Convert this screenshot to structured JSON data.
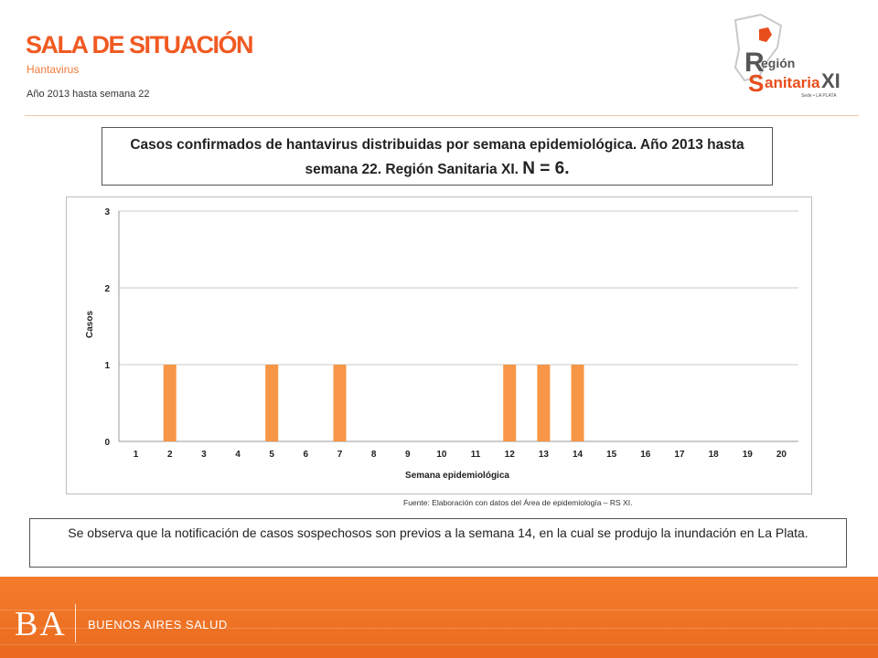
{
  "header": {
    "title": "SALA DE SITUACIÓN",
    "subtitle": "Hantavirus",
    "period": "Año 2013 hasta semana 22"
  },
  "logo": {
    "line1": "egión",
    "letter1": "R",
    "line2": "anitaria",
    "letter2": "S",
    "roman": "XI",
    "seat": "Sede • LA PLATA"
  },
  "chart_title": {
    "text": "Casos confirmados de hantavirus distribuidas por semana epidemiológica. Año 2013 hasta semana 22. Región Sanitaria XI.",
    "n_label": "N = 6."
  },
  "chart_data": {
    "type": "bar",
    "categories": [
      "1",
      "2",
      "3",
      "4",
      "5",
      "6",
      "7",
      "8",
      "9",
      "10",
      "11",
      "12",
      "13",
      "14",
      "15",
      "16",
      "17",
      "18",
      "19",
      "20"
    ],
    "values": [
      0,
      1,
      0,
      0,
      1,
      0,
      1,
      0,
      0,
      0,
      0,
      1,
      1,
      1,
      0,
      0,
      0,
      0,
      0,
      0
    ],
    "xlabel": "Semana epidemiológica",
    "ylabel": "Casos",
    "ylim": [
      0,
      3
    ],
    "yticks": [
      "0",
      "1",
      "2",
      "3"
    ],
    "bar_color": "#f79646",
    "grid": true
  },
  "source": "Fuente: Elaboración con datos del Área de epidemiología – RS XI.",
  "note": "Se observa que la notificación de casos sospechosos son previos a la semana 14, en la cual se produjo la inundación en La Plata.",
  "footer": {
    "brand": "BA",
    "text": "BUENOS AIRES SALUD"
  },
  "colors": {
    "accent": "#f05a22",
    "footer": "#f47d2c"
  }
}
